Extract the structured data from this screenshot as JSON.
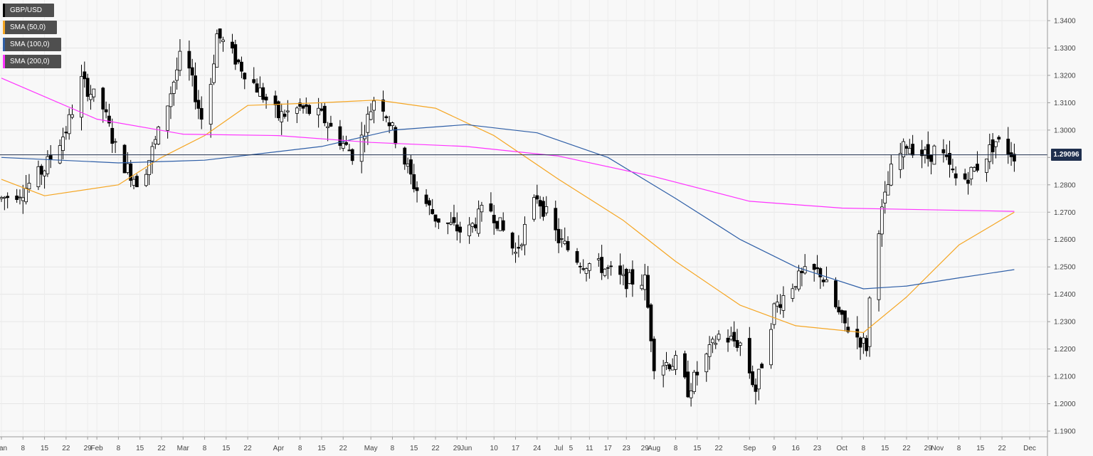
{
  "legend": [
    {
      "label": "GBP/USD",
      "color": "#000000"
    },
    {
      "label": "SMA (50,0)",
      "color": "#f5a623"
    },
    {
      "label": "SMA (100,0)",
      "color": "#2f5fa7"
    },
    {
      "label": "SMA (200,0)",
      "color": "#ff33ff"
    }
  ],
  "last_price": "1.29096",
  "chart_data": {
    "type": "candlestick",
    "symbol": "GBP/USD",
    "timeframe": "daily",
    "ylim": [
      1.185,
      1.345
    ],
    "y_ticks": [
      "1.1900",
      "1.2000",
      "1.2100",
      "1.2200",
      "1.2300",
      "1.2400",
      "1.2500",
      "1.2600",
      "1.2700",
      "1.2800",
      "1.2900",
      "1.3000",
      "1.3100",
      "1.3200",
      "1.3300",
      "1.3400"
    ],
    "x_ticks": [
      "Jan",
      "8",
      "15",
      "22",
      "29",
      "Feb",
      "8",
      "15",
      "22",
      "Mar",
      "8",
      "15",
      "22",
      "Apr",
      "8",
      "15",
      "22",
      "May",
      "8",
      "15",
      "22",
      "29",
      "Jun",
      "10",
      "17",
      "24",
      "Jul",
      "5",
      "11",
      "17",
      "23",
      "29",
      "Aug",
      "8",
      "15",
      "22",
      "Sep",
      "9",
      "16",
      "23",
      "Oct",
      "8",
      "15",
      "22",
      "29",
      "Nov",
      "8",
      "15",
      "22",
      "Dec"
    ],
    "grid": true,
    "current_price": 1.29096,
    "close_anchors": [
      {
        "date": "Jan 1",
        "close": 1.275
      },
      {
        "date": "Jan 8",
        "close": 1.278
      },
      {
        "date": "Jan 15",
        "close": 1.286
      },
      {
        "date": "Jan 22",
        "close": 1.3
      },
      {
        "date": "Jan 27",
        "close": 1.318
      },
      {
        "date": "Feb 3",
        "close": 1.308
      },
      {
        "date": "Feb 8",
        "close": 1.29
      },
      {
        "date": "Feb 15",
        "close": 1.28
      },
      {
        "date": "Feb 22",
        "close": 1.302
      },
      {
        "date": "Mar 1",
        "close": 1.33
      },
      {
        "date": "Mar 8",
        "close": 1.3
      },
      {
        "date": "Mar 12",
        "close": 1.335
      },
      {
        "date": "Mar 22",
        "close": 1.32
      },
      {
        "date": "Apr 1",
        "close": 1.305
      },
      {
        "date": "Apr 8",
        "close": 1.308
      },
      {
        "date": "Apr 15",
        "close": 1.305
      },
      {
        "date": "Apr 22",
        "close": 1.295
      },
      {
        "date": "Apr 26",
        "close": 1.29
      },
      {
        "date": "May 3",
        "close": 1.315
      },
      {
        "date": "May 8",
        "close": 1.3
      },
      {
        "date": "May 15",
        "close": 1.28
      },
      {
        "date": "May 22",
        "close": 1.268
      },
      {
        "date": "Jun 1",
        "close": 1.262
      },
      {
        "date": "Jun 8",
        "close": 1.273
      },
      {
        "date": "Jun 17",
        "close": 1.255
      },
      {
        "date": "Jun 24",
        "close": 1.276
      },
      {
        "date": "Jul 1",
        "close": 1.26
      },
      {
        "date": "Jul 8",
        "close": 1.252
      },
      {
        "date": "Jul 15",
        "close": 1.25
      },
      {
        "date": "Jul 22",
        "close": 1.245
      },
      {
        "date": "Jul 29",
        "close": 1.245
      },
      {
        "date": "Aug 1",
        "close": 1.215
      },
      {
        "date": "Aug 8",
        "close": 1.215
      },
      {
        "date": "Aug 12",
        "close": 1.205
      },
      {
        "date": "Aug 22",
        "close": 1.225
      },
      {
        "date": "Aug 29",
        "close": 1.222
      },
      {
        "date": "Sep 3",
        "close": 1.205
      },
      {
        "date": "Sep 9",
        "close": 1.235
      },
      {
        "date": "Sep 16",
        "close": 1.245
      },
      {
        "date": "Sep 20",
        "close": 1.248
      },
      {
        "date": "Sep 24",
        "close": 1.248
      },
      {
        "date": "Oct 1",
        "close": 1.23
      },
      {
        "date": "Oct 9",
        "close": 1.221
      },
      {
        "date": "Oct 11",
        "close": 1.255
      },
      {
        "date": "Oct 17",
        "close": 1.285
      },
      {
        "date": "Oct 22",
        "close": 1.295
      },
      {
        "date": "Oct 29",
        "close": 1.29
      },
      {
        "date": "Nov 1",
        "close": 1.294
      },
      {
        "date": "Nov 8",
        "close": 1.28
      },
      {
        "date": "Nov 15",
        "close": 1.288
      },
      {
        "date": "Nov 20",
        "close": 1.296
      },
      {
        "date": "Nov 26",
        "close": 1.291
      }
    ],
    "sma50": [
      {
        "date": "Jan 1",
        "value": 1.282
      },
      {
        "date": "Jan 15",
        "value": 1.276
      },
      {
        "date": "Feb 8",
        "value": 1.28
      },
      {
        "date": "Feb 22",
        "value": 1.29
      },
      {
        "date": "Mar 8",
        "value": 1.298
      },
      {
        "date": "Mar 22",
        "value": 1.309
      },
      {
        "date": "Apr 15",
        "value": 1.31
      },
      {
        "date": "May 3",
        "value": 1.311
      },
      {
        "date": "May 22",
        "value": 1.308
      },
      {
        "date": "Jun 10",
        "value": 1.298
      },
      {
        "date": "Jul 1",
        "value": 1.282
      },
      {
        "date": "Jul 22",
        "value": 1.267
      },
      {
        "date": "Aug 8",
        "value": 1.252
      },
      {
        "date": "Aug 29",
        "value": 1.236
      },
      {
        "date": "Sep 16",
        "value": 1.2285
      },
      {
        "date": "Oct 8",
        "value": 1.226
      },
      {
        "date": "Oct 22",
        "value": 1.239
      },
      {
        "date": "Nov 8",
        "value": 1.258
      },
      {
        "date": "Nov 26",
        "value": 1.27
      }
    ],
    "sma100": [
      {
        "date": "Jan 1",
        "value": 1.29
      },
      {
        "date": "Feb 8",
        "value": 1.288
      },
      {
        "date": "Mar 8",
        "value": 1.289
      },
      {
        "date": "Apr 15",
        "value": 1.294
      },
      {
        "date": "May 8",
        "value": 1.3
      },
      {
        "date": "Jun 1",
        "value": 1.302
      },
      {
        "date": "Jun 24",
        "value": 1.299
      },
      {
        "date": "Jul 17",
        "value": 1.29
      },
      {
        "date": "Aug 8",
        "value": 1.275
      },
      {
        "date": "Aug 29",
        "value": 1.26
      },
      {
        "date": "Sep 16",
        "value": 1.25
      },
      {
        "date": "Oct 8",
        "value": 1.242
      },
      {
        "date": "Oct 22",
        "value": 1.243
      },
      {
        "date": "Nov 8",
        "value": 1.246
      },
      {
        "date": "Nov 26",
        "value": 1.249
      }
    ],
    "sma200": [
      {
        "date": "Jan 1",
        "value": 1.319
      },
      {
        "date": "Feb 1",
        "value": 1.304
      },
      {
        "date": "Mar 1",
        "value": 1.2985
      },
      {
        "date": "Apr 1",
        "value": 1.298
      },
      {
        "date": "May 1",
        "value": 1.2955
      },
      {
        "date": "Jun 1",
        "value": 1.294
      },
      {
        "date": "Jul 1",
        "value": 1.2905
      },
      {
        "date": "Aug 1",
        "value": 1.283
      },
      {
        "date": "Sep 1",
        "value": 1.274
      },
      {
        "date": "Oct 1",
        "value": 1.2715
      },
      {
        "date": "Oct 15",
        "value": 1.2712
      },
      {
        "date": "Nov 26",
        "value": 1.2703
      }
    ]
  }
}
